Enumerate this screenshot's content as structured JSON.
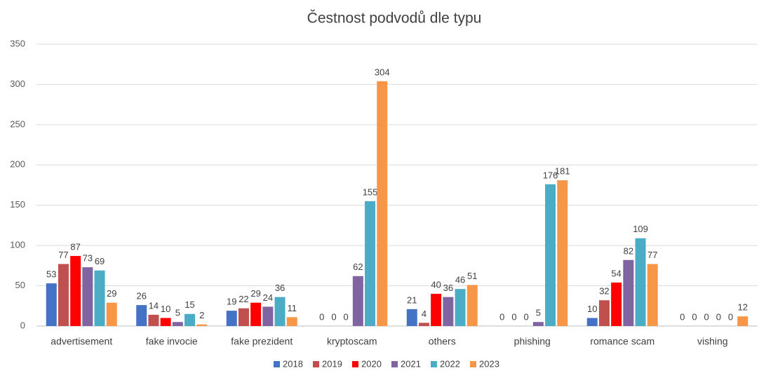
{
  "chart_data": {
    "type": "bar",
    "title": "Čestnost podvodů dle typu",
    "categories": [
      "advertisement",
      "fake invocie",
      "fake prezident",
      "kryptoscam",
      "others",
      "phishing",
      "romance scam",
      "vishing"
    ],
    "series": [
      {
        "name": "2018",
        "color": "#4472c4",
        "values": [
          53,
          26,
          19,
          0,
          21,
          0,
          10,
          0
        ]
      },
      {
        "name": "2019",
        "color": "#c0504d",
        "values": [
          77,
          14,
          22,
          0,
          4,
          0,
          32,
          0
        ]
      },
      {
        "name": "2020",
        "color": "#ff0000",
        "values": [
          87,
          10,
          29,
          0,
          40,
          0,
          54,
          0
        ]
      },
      {
        "name": "2021",
        "color": "#8064a2",
        "values": [
          73,
          5,
          24,
          62,
          36,
          5,
          82,
          0
        ]
      },
      {
        "name": "2022",
        "color": "#4bacc6",
        "values": [
          69,
          15,
          36,
          155,
          46,
          176,
          109,
          0
        ]
      },
      {
        "name": "2023",
        "color": "#f79646",
        "values": [
          29,
          2,
          11,
          304,
          51,
          181,
          77,
          12
        ]
      }
    ],
    "ylim": [
      0,
      350
    ],
    "yticks": [
      0,
      50,
      100,
      150,
      200,
      250,
      300,
      350
    ],
    "grid": true,
    "legend": "bottom"
  }
}
